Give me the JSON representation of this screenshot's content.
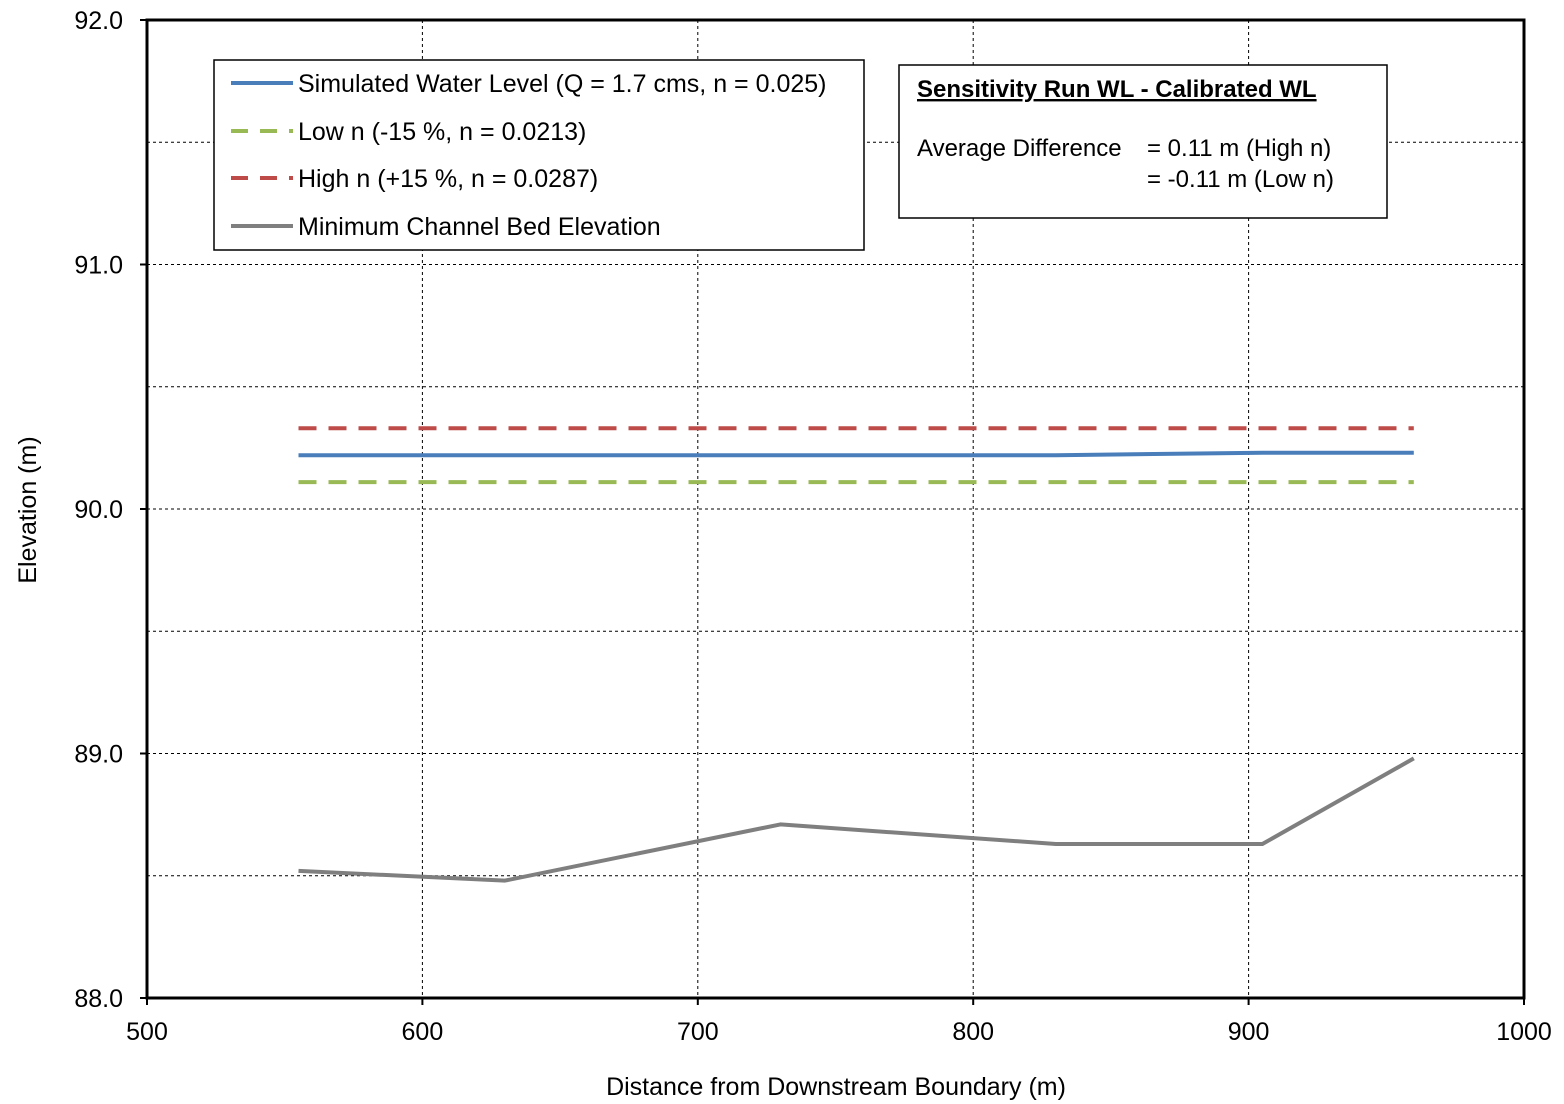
{
  "chart_data": {
    "type": "line",
    "title": "",
    "xlabel": "Distance from Downstream Boundary (m)",
    "ylabel": "Elevation (m)",
    "xlim": [
      500,
      1000
    ],
    "ylim": [
      88.0,
      92.0
    ],
    "x_ticks": [
      "500",
      "600",
      "700",
      "800",
      "900",
      "1000"
    ],
    "y_ticks": [
      "88.0",
      "89.0",
      "90.0",
      "91.0",
      "92.0"
    ],
    "grid": true,
    "legend_position": "top-left",
    "series": [
      {
        "name": "Simulated Water Level (Q = 1.7 cms, n = 0.025)",
        "color": "#4a7ebb",
        "style": "solid",
        "x": [
          555,
          630,
          730,
          830,
          905,
          960
        ],
        "y": [
          90.22,
          90.22,
          90.22,
          90.22,
          90.23,
          90.23
        ]
      },
      {
        "name": "Low n (-15 %, n = 0.0213)",
        "color": "#98b954",
        "style": "dashed",
        "x": [
          555,
          630,
          730,
          830,
          905,
          960
        ],
        "y": [
          90.11,
          90.11,
          90.11,
          90.11,
          90.11,
          90.11
        ]
      },
      {
        "name": "High n (+15 %, n = 0.0287)",
        "color": "#be4b48",
        "style": "dashed",
        "x": [
          555,
          630,
          730,
          830,
          905,
          960
        ],
        "y": [
          90.33,
          90.33,
          90.33,
          90.33,
          90.33,
          90.33
        ]
      },
      {
        "name": "Minimum Channel Bed Elevation",
        "color": "#7f7f7f",
        "style": "solid",
        "x": [
          555,
          630,
          730,
          830,
          905,
          960
        ],
        "y": [
          88.52,
          88.48,
          88.71,
          88.63,
          88.63,
          88.98
        ]
      }
    ],
    "annotation": {
      "title": "Sensitivity Run WL - Calibrated WL",
      "label": "Average Difference",
      "line1": "= 0.11 m (High n)",
      "line2": "= -0.11 m (Low n)"
    }
  }
}
